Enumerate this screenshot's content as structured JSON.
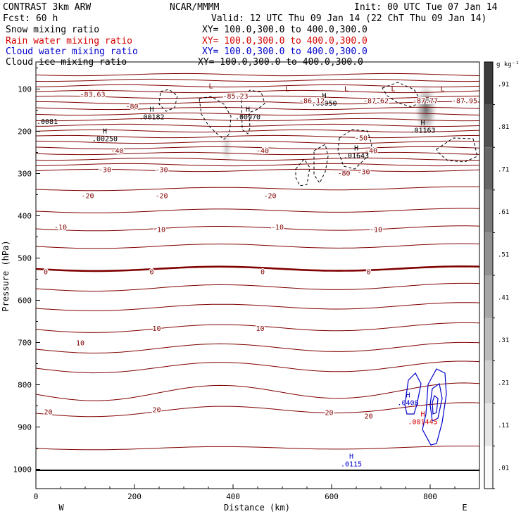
{
  "header": {
    "model": "CONTRAST  3km ARW",
    "center": "NCAR/MMMM",
    "init": "Init: 00 UTC Tue 07 Jan 14",
    "fcst": "Fcst:   60 h",
    "valid": "Valid: 12 UTC Thu 09 Jan 14 (22 ChT Thu 09 Jan 14)"
  },
  "fields": [
    {
      "name": "Snow mixing ratio",
      "xy": "XY= 100.0,300.0 to 400.0,300.0",
      "color": "#000000"
    },
    {
      "name": "Rain water mixing ratio",
      "xy": "XY= 100.0,300.0 to 400.0,300.0",
      "color": "#d40000"
    },
    {
      "name": "Cloud water mixing ratio",
      "xy": "XY= 100.0,300.0 to 400.0,300.0",
      "color": "#0000cc"
    },
    {
      "name": "Cloud ice mixing ratio",
      "xy": "XY= 100.0,300.0 to 400.0,300.0",
      "color": "#000000"
    }
  ],
  "chart_data": {
    "type": "cross-section contour",
    "xlabel": "Distance (km)",
    "ylabel": "Pressure (hPa)",
    "xlim": [
      0,
      900
    ],
    "ylim": [
      1050,
      50
    ],
    "x_ticks": [
      "0",
      "200",
      "400",
      "600",
      "800"
    ],
    "x_tick_values": [
      0,
      200,
      400,
      600,
      800
    ],
    "y_ticks": [
      "100",
      "200",
      "300",
      "400",
      "500",
      "600",
      "700",
      "800",
      "900",
      "1000"
    ],
    "y_tick_values": [
      100,
      200,
      300,
      400,
      500,
      600,
      700,
      800,
      900,
      1000
    ],
    "direction_labels": [
      "W",
      "E"
    ],
    "colorbar_unit": "g kg⁻¹",
    "colorbar_ticks": [
      ".91",
      ".81",
      ".71",
      ".61",
      ".51",
      ".41",
      ".31",
      ".21",
      ".11",
      ".01"
    ],
    "temperature_contour_labels": [
      {
        "text": "-83.63",
        "x": 115,
        "p": 112
      },
      {
        "text": "-80",
        "x": 195,
        "p": 140
      },
      {
        "text": "-85.23",
        "x": 405,
        "p": 116
      },
      {
        "text": "-86.12",
        "x": 560,
        "p": 127
      },
      {
        "text": "-87.62",
        "x": 690,
        "p": 127
      },
      {
        "text": "-87.77",
        "x": 790,
        "p": 127
      },
      {
        "text": "-87.95",
        "x": 870,
        "p": 127
      },
      {
        "text": "-50",
        "x": 660,
        "p": 215
      },
      {
        "text": "-40",
        "x": 165,
        "p": 245
      },
      {
        "text": "-40",
        "x": 460,
        "p": 245
      },
      {
        "text": "-40",
        "x": 680,
        "p": 245
      },
      {
        "text": "-30",
        "x": 140,
        "p": 290
      },
      {
        "text": "-30",
        "x": 255,
        "p": 290
      },
      {
        "text": "-30",
        "x": 665,
        "p": 295
      },
      {
        "text": "-80",
        "x": 625,
        "p": 298
      },
      {
        "text": "-20",
        "x": 105,
        "p": 352
      },
      {
        "text": "-20",
        "x": 255,
        "p": 352
      },
      {
        "text": "-20",
        "x": 475,
        "p": 352
      },
      {
        "text": "-10",
        "x": 50,
        "p": 426
      },
      {
        "text": "-10",
        "x": 250,
        "p": 432
      },
      {
        "text": "-10",
        "x": 490,
        "p": 426
      },
      {
        "text": "-10",
        "x": 690,
        "p": 432
      },
      {
        "text": "0",
        "x": 20,
        "p": 532
      },
      {
        "text": "0",
        "x": 235,
        "p": 532
      },
      {
        "text": "0",
        "x": 460,
        "p": 532
      },
      {
        "text": "0",
        "x": 675,
        "p": 532
      },
      {
        "text": "10",
        "x": 245,
        "p": 666
      },
      {
        "text": "10",
        "x": 455,
        "p": 666
      },
      {
        "text": "10",
        "x": 90,
        "p": 700
      },
      {
        "text": "20",
        "x": 25,
        "p": 863
      },
      {
        "text": "20",
        "x": 245,
        "p": 858
      },
      {
        "text": "20",
        "x": 595,
        "p": 865
      },
      {
        "text": "20",
        "x": 675,
        "p": 873
      }
    ],
    "extrema_labels": [
      {
        "mark": "L",
        "x": 355,
        "p": 98,
        "color": "#800000"
      },
      {
        "mark": "L",
        "x": 510,
        "p": 105,
        "color": "#800000"
      },
      {
        "mark": "L",
        "x": 630,
        "p": 105,
        "color": "#800000"
      },
      {
        "mark": "L",
        "x": 725,
        "p": 105,
        "color": "#800000"
      },
      {
        "mark": "L",
        "x": 825,
        "p": 105,
        "color": "#800000"
      },
      {
        "mark": "H",
        "x": 235,
        "p": 153,
        "value": ".00182",
        "color": "#000000"
      },
      {
        "mark": "H",
        "x": 430,
        "p": 153,
        "value": ".00970",
        "color": "#000000"
      },
      {
        "mark": "H",
        "x": 585,
        "p": 121,
        "value": ".00050",
        "color": "#000000"
      },
      {
        "mark": "H",
        "x": 785,
        "p": 185,
        "value": ".01163",
        "color": "#000000"
      },
      {
        "mark": "H",
        "x": 140,
        "p": 205,
        "value": ".00250",
        "color": "#000000"
      },
      {
        "mark": "H",
        "x": 650,
        "p": 245,
        "value": ".01643",
        "color": "#000000"
      },
      {
        "mark": "H",
        "x": 755,
        "p": 830,
        "value": ".0408",
        "color": "#0000cc"
      },
      {
        "mark": "H",
        "x": 785,
        "p": 875,
        "value": ".001445",
        "color": "#d40000"
      },
      {
        "mark": "H",
        "x": 640,
        "p": 975,
        "value": ".0115",
        "color": "#0000cc"
      }
    ],
    "edge_labels": [
      {
        "text": ".0081",
        "x": 0,
        "p": 176
      }
    ]
  }
}
